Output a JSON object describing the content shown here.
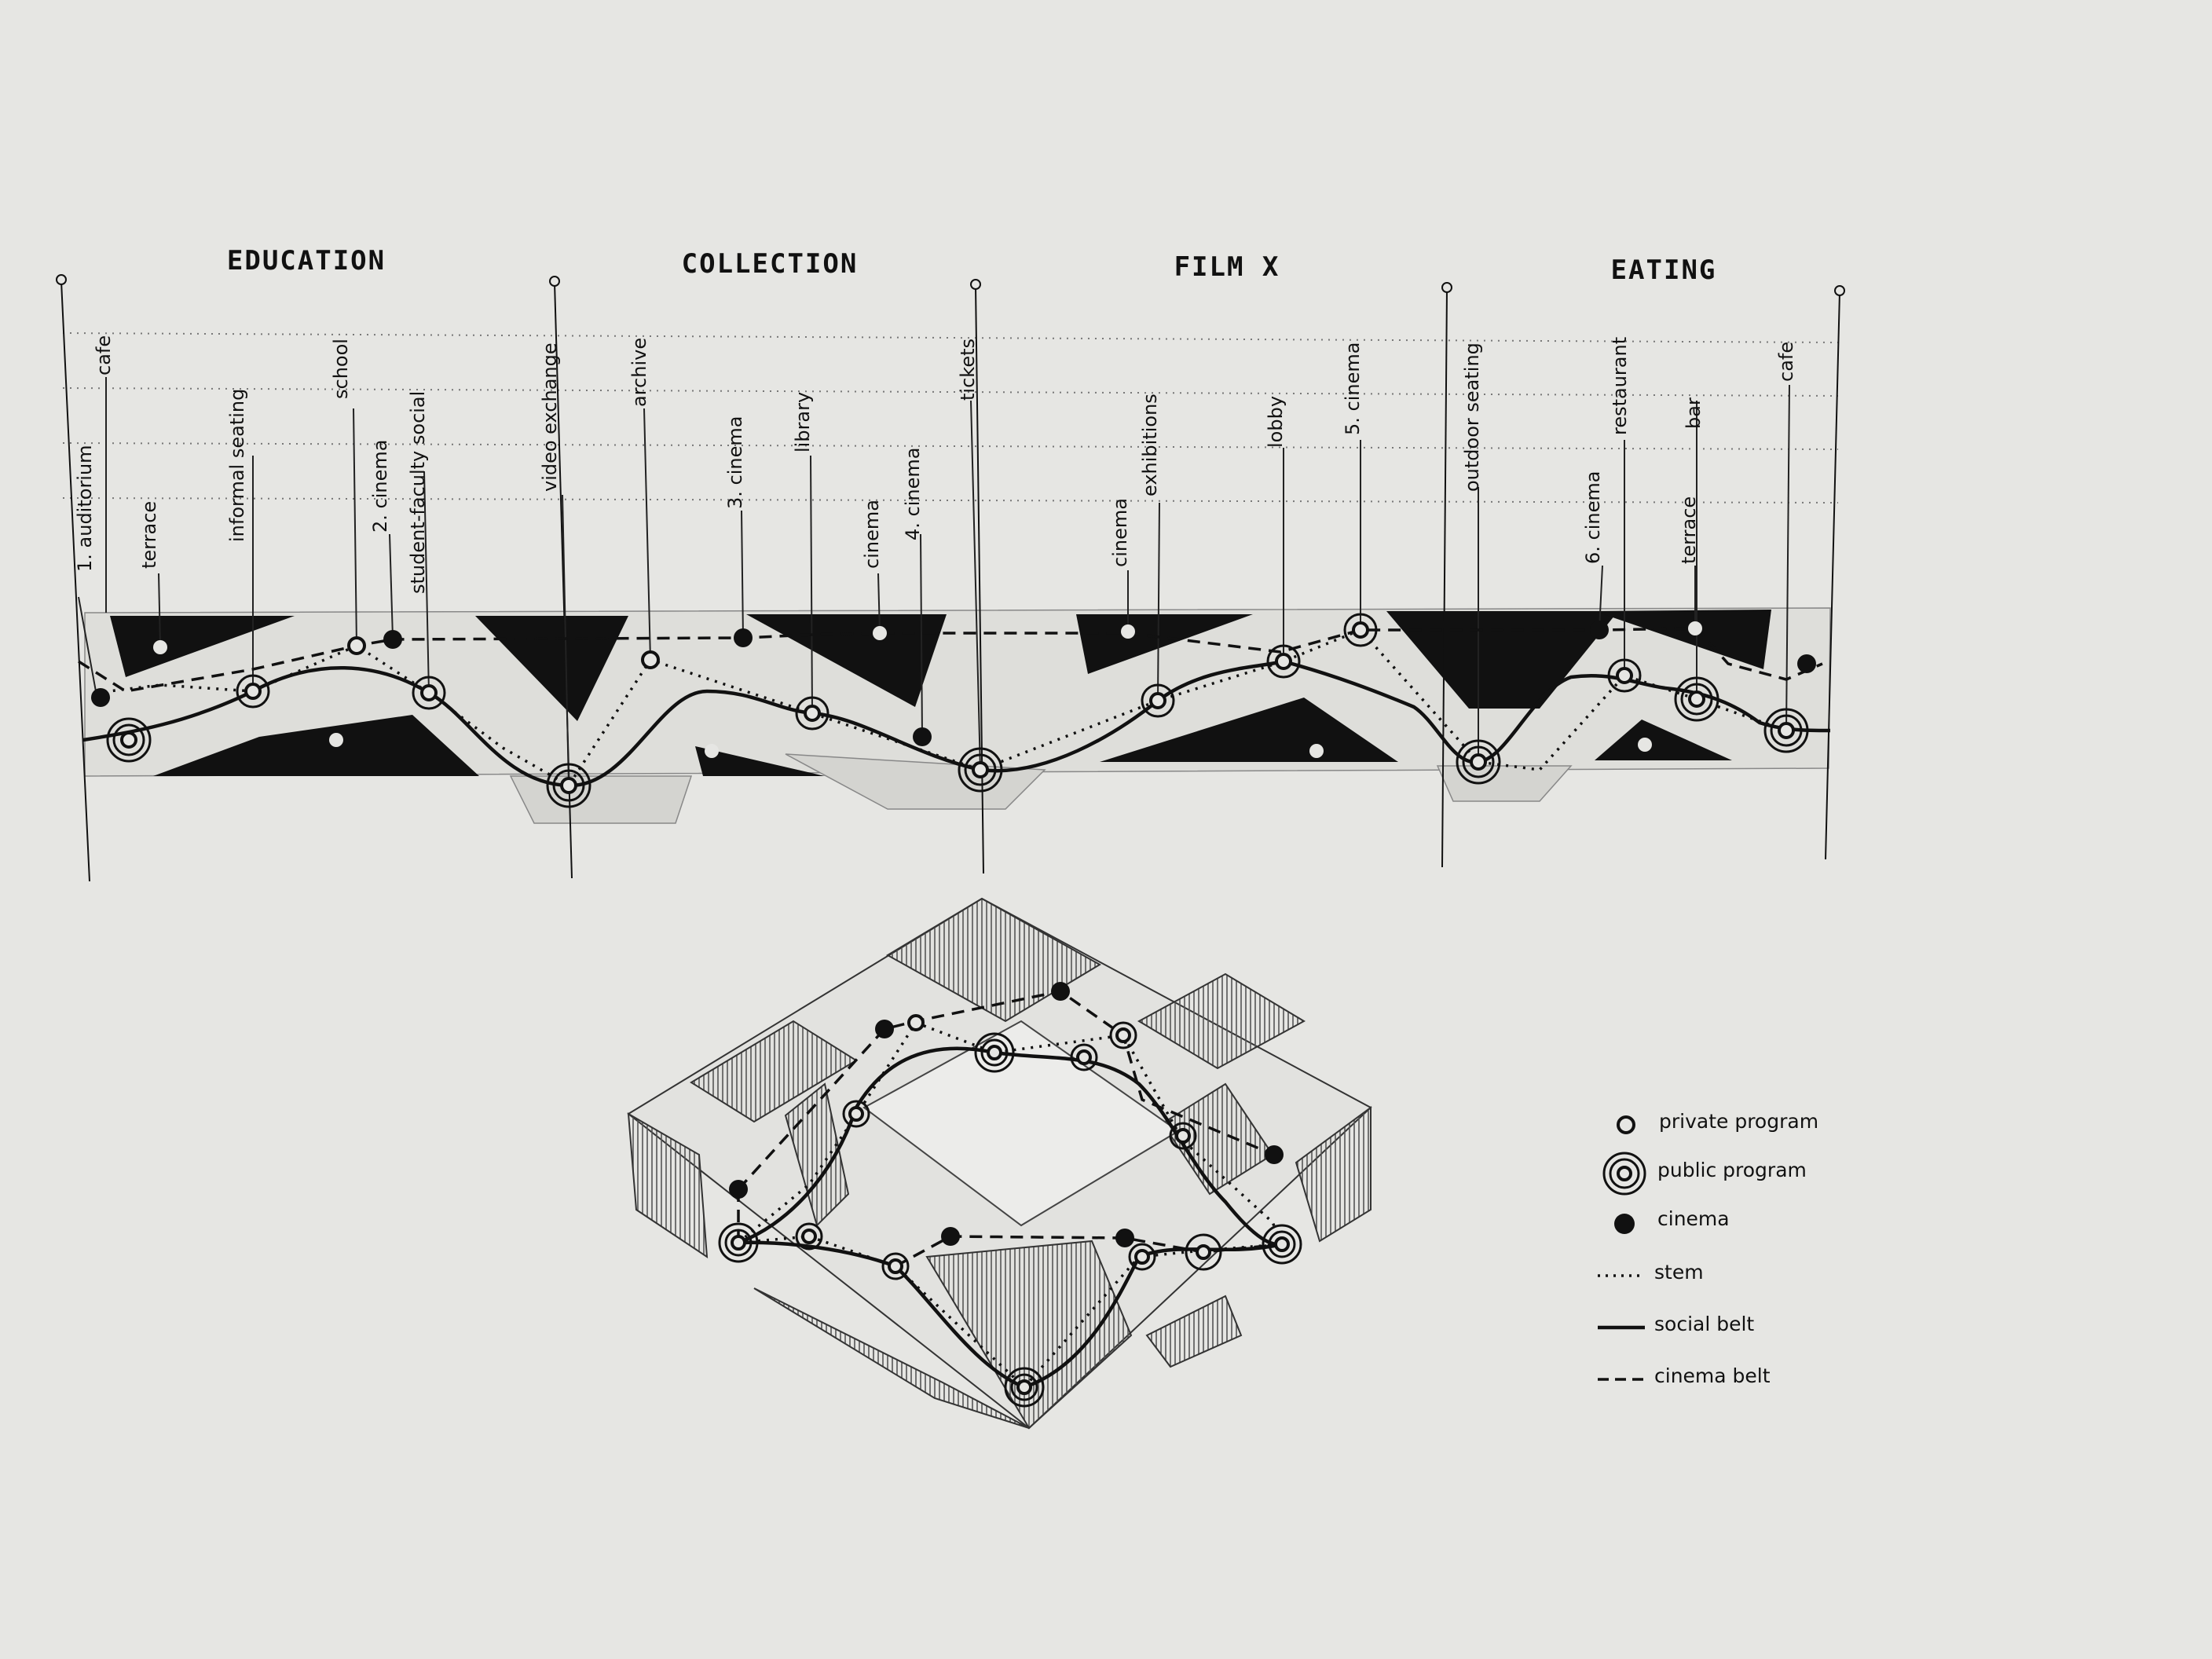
{
  "sections": [
    {
      "id": "education",
      "title": "EDUCATION"
    },
    {
      "id": "collection",
      "title": "COLLECTION"
    },
    {
      "id": "filmx",
      "title": "FILM X"
    },
    {
      "id": "eating",
      "title": "EATING"
    }
  ],
  "program_labels": [
    {
      "id": "auditorium-1",
      "text": "1. auditorium"
    },
    {
      "id": "cafe-1",
      "text": "cafe"
    },
    {
      "id": "terrace-1",
      "text": "terrace"
    },
    {
      "id": "informal-seating",
      "text": "informal seating"
    },
    {
      "id": "school",
      "text": "school"
    },
    {
      "id": "cinema-2",
      "text": "2. cinema"
    },
    {
      "id": "student-faculty-social",
      "text": "student-faculty social"
    },
    {
      "id": "video-exchange",
      "text": "video exchange"
    },
    {
      "id": "archive",
      "text": "archive"
    },
    {
      "id": "cinema-3",
      "text": "3. cinema"
    },
    {
      "id": "library",
      "text": "library"
    },
    {
      "id": "cinema-a",
      "text": "cinema"
    },
    {
      "id": "cinema-4",
      "text": "4. cinema"
    },
    {
      "id": "tickets",
      "text": "tickets"
    },
    {
      "id": "cinema-b",
      "text": "cinema"
    },
    {
      "id": "exhibitions",
      "text": "exhibitions"
    },
    {
      "id": "lobby",
      "text": "lobby"
    },
    {
      "id": "cinema-5",
      "text": "5. cinema"
    },
    {
      "id": "outdoor-seating",
      "text": "outdoor seating"
    },
    {
      "id": "cinema-6",
      "text": "6. cinema"
    },
    {
      "id": "restaurant",
      "text": "restaurant"
    },
    {
      "id": "terrace-2",
      "text": "terrace"
    },
    {
      "id": "bar",
      "text": "bar"
    },
    {
      "id": "cafe-2",
      "text": "cafe"
    }
  ],
  "legend": [
    {
      "id": "private",
      "label": "private program",
      "symbol": "private-program-icon"
    },
    {
      "id": "public",
      "label": "public program",
      "symbol": "public-program-icon"
    },
    {
      "id": "cinema",
      "label": "cinema",
      "symbol": "cinema-icon"
    },
    {
      "id": "stem",
      "label": "stem",
      "symbol": "dotted-line"
    },
    {
      "id": "social",
      "label": "social belt",
      "symbol": "solid-line"
    },
    {
      "id": "cinemabelt",
      "label": "cinema belt",
      "symbol": "dashed-line"
    }
  ],
  "colors": {
    "paper": "#e6e6e3",
    "ink": "#111111",
    "hatch": "#555555"
  }
}
